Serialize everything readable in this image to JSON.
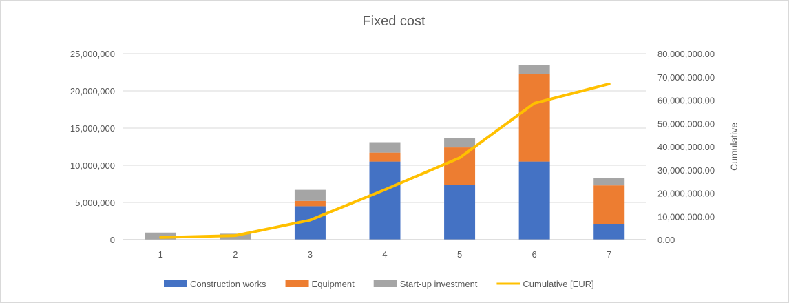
{
  "chart_data": {
    "type": "bar",
    "stacked": true,
    "title": "Fixed cost",
    "xlabel": "",
    "ylabel": "",
    "y2label": "Cumulative",
    "categories": [
      "1",
      "2",
      "3",
      "4",
      "5",
      "6",
      "7"
    ],
    "series": [
      {
        "name": "Construction works",
        "type": "bar",
        "axis": "left",
        "color": "#4472C4",
        "values": [
          0,
          0,
          4500000,
          10500000,
          7400000,
          10500000,
          2100000
        ]
      },
      {
        "name": "Equipment",
        "type": "bar",
        "axis": "left",
        "color": "#ED7D31",
        "values": [
          0,
          0,
          700000,
          1200000,
          5000000,
          11800000,
          5200000
        ]
      },
      {
        "name": "Start-up investment",
        "type": "bar",
        "axis": "left",
        "color": "#A5A5A5",
        "values": [
          950000,
          800000,
          1500000,
          1400000,
          1300000,
          1200000,
          1000000
        ]
      },
      {
        "name": "Cumulative [EUR]",
        "type": "line",
        "axis": "right",
        "color": "#FFC000",
        "values": [
          950000,
          1750000,
          8400000,
          21500000,
          35200000,
          58700000,
          67000000
        ]
      }
    ],
    "ylim": [
      0,
      25000000
    ],
    "y_ticks": [
      "0",
      "5,000,000",
      "10,000,000",
      "15,000,000",
      "20,000,000",
      "25,000,000"
    ],
    "y2lim": [
      0,
      80000000
    ],
    "y2_ticks": [
      "0.00",
      "10,000,000.00",
      "20,000,000.00",
      "30,000,000.00",
      "40,000,000.00",
      "50,000,000.00",
      "60,000,000.00",
      "70,000,000.00",
      "80,000,000.00"
    ],
    "grid": true,
    "legend_position": "bottom"
  }
}
